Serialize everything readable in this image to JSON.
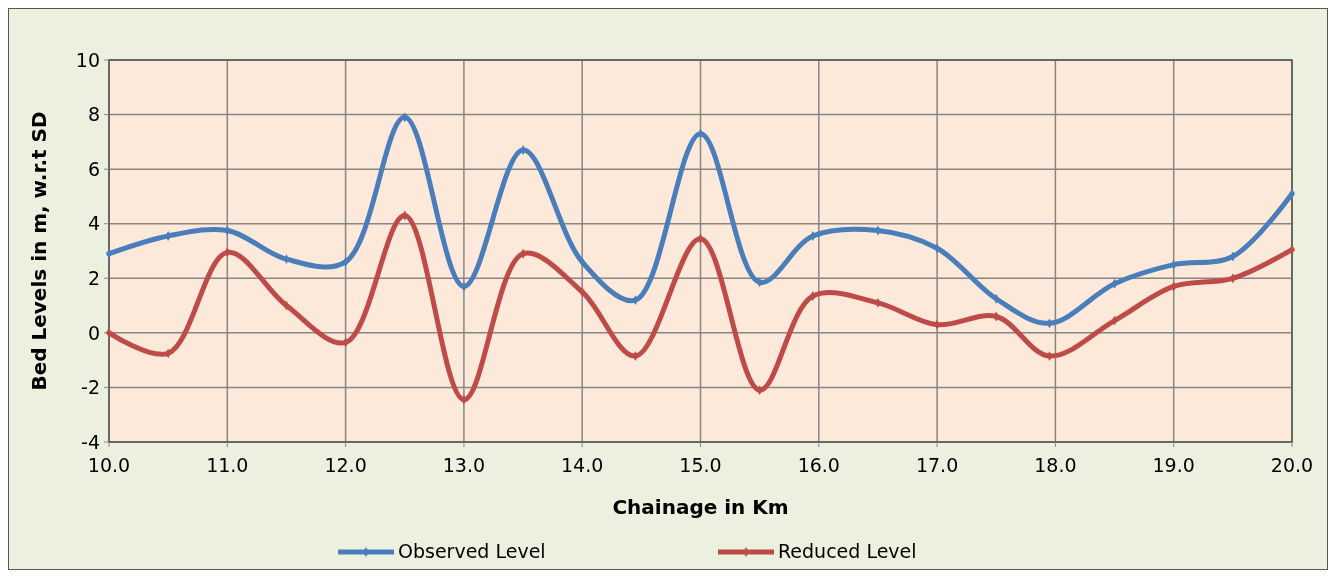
{
  "chart_data": {
    "type": "line",
    "xlabel": "Chainage in Km",
    "ylabel": "Bed Levels in m, w.r.t SD",
    "x": [
      10,
      10.5,
      11,
      11.5,
      12,
      12.5,
      13,
      13.5,
      14,
      14.45,
      15,
      15.5,
      15.95,
      16.5,
      17,
      17.5,
      17.95,
      18.5,
      19,
      19.5,
      20
    ],
    "series": [
      {
        "name": "Observed Level",
        "color": "#4a7ebb",
        "values": [
          2.9,
          3.55,
          3.75,
          2.7,
          2.6,
          7.9,
          1.7,
          6.7,
          2.6,
          1.2,
          7.3,
          1.85,
          3.55,
          3.75,
          3.1,
          1.25,
          0.35,
          1.8,
          2.5,
          2.8,
          5.1
        ]
      },
      {
        "name": "Reduced Level",
        "color": "#be4b48",
        "values": [
          0.0,
          -0.75,
          2.95,
          1.0,
          -0.35,
          4.3,
          -2.45,
          2.9,
          1.5,
          -0.85,
          3.45,
          -2.1,
          1.35,
          1.1,
          0.3,
          0.6,
          -0.85,
          0.45,
          1.7,
          2.0,
          3.05
        ]
      }
    ],
    "xlim": [
      10,
      20
    ],
    "xticks": [
      {
        "value": 10,
        "label": "10.0"
      },
      {
        "value": 11,
        "label": "11.0"
      },
      {
        "value": 12,
        "label": "12.0"
      },
      {
        "value": 13,
        "label": "13.0"
      },
      {
        "value": 14,
        "label": "14.0"
      },
      {
        "value": 15,
        "label": "15.0"
      },
      {
        "value": 16,
        "label": "16.0"
      },
      {
        "value": 17,
        "label": "17.0"
      },
      {
        "value": 18,
        "label": "18.0"
      },
      {
        "value": 19,
        "label": "19.0"
      },
      {
        "value": 20,
        "label": "20.0"
      }
    ],
    "ylim": [
      -4,
      10
    ],
    "yticks": [
      -4,
      -2,
      0,
      2,
      4,
      6,
      8,
      10
    ],
    "grid": true,
    "legend": "bottom",
    "marker": "diamond",
    "line_style": "solid"
  }
}
